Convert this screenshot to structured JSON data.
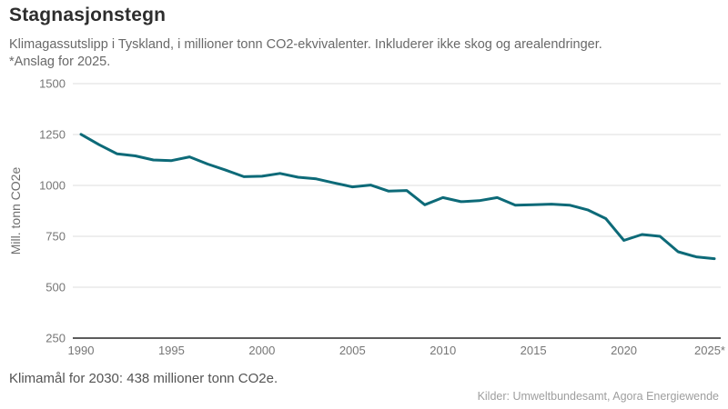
{
  "header": {
    "title": "Stagnasjonstegn",
    "subtitle_lines": [
      "Klimagassutslipp i Tyskland, i millioner tonn CO2-ekvivalenter. Inkluderer ikke skog og arealendringer.",
      "*Anslag for 2025."
    ]
  },
  "chart_data": {
    "type": "line",
    "title": "Stagnasjonstegn",
    "xlabel": "",
    "ylabel": "Mill. tonn CO2e",
    "series_name": "Klimagassutslipp i Tyskland (mill. tonn CO2e)",
    "x": [
      1990,
      1991,
      1992,
      1993,
      1994,
      1995,
      1996,
      1997,
      1998,
      1999,
      2000,
      2001,
      2002,
      2003,
      2004,
      2005,
      2006,
      2007,
      2008,
      2009,
      2010,
      2011,
      2012,
      2013,
      2014,
      2015,
      2016,
      2017,
      2018,
      2019,
      2020,
      2021,
      2022,
      2023,
      2024,
      2025
    ],
    "values": [
      1251,
      1200,
      1155,
      1145,
      1125,
      1122,
      1140,
      1105,
      1075,
      1043,
      1045,
      1059,
      1040,
      1032,
      1012,
      993,
      1002,
      972,
      975,
      905,
      940,
      920,
      925,
      940,
      903,
      905,
      908,
      903,
      880,
      837,
      730,
      759,
      750,
      674,
      649,
      640
    ],
    "ylim": [
      250,
      1500
    ],
    "yticks": [
      250,
      500,
      750,
      1000,
      1250,
      1500
    ],
    "xticks": [
      1990,
      1995,
      2000,
      2005,
      2010,
      2015,
      2020,
      2025
    ],
    "xtick_labels": [
      "1990",
      "1995",
      "2000",
      "2005",
      "2010",
      "2015",
      "2020",
      "2025*"
    ],
    "grid": true,
    "legend": "none",
    "line_color": "#0d6a78",
    "gridline_color": "#dcdcdc",
    "baseline_color": "#262626",
    "tick_label_color": "#767676",
    "axis_title_color": "#6e6e6e",
    "annotation_last_point_estimated": "*Anslag for 2025."
  },
  "footer": {
    "note": "Klimamål for 2030: 438 millioner tonn CO2e.",
    "source": "Kilder: Umweltbundesamt, Agora Energiewende"
  }
}
